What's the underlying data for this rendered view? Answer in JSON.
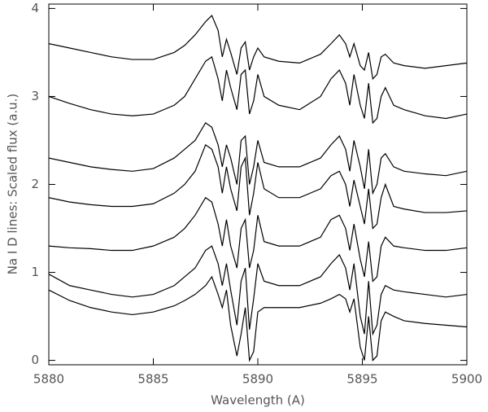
{
  "chart_data": {
    "type": "line",
    "xlabel": "Wavelength (A)",
    "ylabel": "Na I D lines: Scaled flux (a.u.)",
    "x": [
      5880,
      5881,
      5882,
      5883,
      5884,
      5885,
      5886,
      5886.5,
      5887,
      5887.5,
      5887.8,
      5888.1,
      5888.3,
      5888.5,
      5888.7,
      5889.0,
      5889.2,
      5889.4,
      5889.6,
      5889.8,
      5890.0,
      5890.3,
      5891,
      5892,
      5893,
      5893.5,
      5893.9,
      5894.2,
      5894.4,
      5894.6,
      5894.9,
      5895.1,
      5895.3,
      5895.5,
      5895.7,
      5895.9,
      5896.1,
      5896.5,
      5897,
      5898,
      5899,
      5900
    ],
    "series": [
      {
        "color": "#000000",
        "values": [
          3.6,
          3.55,
          3.5,
          3.45,
          3.42,
          3.42,
          3.5,
          3.58,
          3.7,
          3.85,
          3.92,
          3.75,
          3.45,
          3.65,
          3.5,
          3.25,
          3.55,
          3.62,
          3.3,
          3.45,
          3.55,
          3.45,
          3.4,
          3.38,
          3.48,
          3.6,
          3.7,
          3.6,
          3.45,
          3.6,
          3.35,
          3.3,
          3.5,
          3.2,
          3.25,
          3.45,
          3.48,
          3.38,
          3.35,
          3.32,
          3.35,
          3.38
        ]
      },
      {
        "color": "#000000",
        "values": [
          3.0,
          2.92,
          2.85,
          2.8,
          2.78,
          2.8,
          2.9,
          3.0,
          3.2,
          3.4,
          3.45,
          3.2,
          2.95,
          3.3,
          3.1,
          2.85,
          3.25,
          3.3,
          2.8,
          2.95,
          3.25,
          3.0,
          2.9,
          2.85,
          3.0,
          3.2,
          3.3,
          3.15,
          2.9,
          3.25,
          2.9,
          2.75,
          3.15,
          2.7,
          2.75,
          3.0,
          3.1,
          2.9,
          2.85,
          2.78,
          2.75,
          2.8
        ]
      },
      {
        "color": "#000000",
        "values": [
          2.3,
          2.25,
          2.2,
          2.17,
          2.15,
          2.18,
          2.3,
          2.4,
          2.5,
          2.7,
          2.65,
          2.45,
          2.2,
          2.45,
          2.3,
          2.0,
          2.5,
          2.55,
          2.0,
          2.2,
          2.5,
          2.25,
          2.2,
          2.2,
          2.3,
          2.45,
          2.55,
          2.4,
          2.15,
          2.5,
          2.2,
          1.95,
          2.4,
          1.9,
          2.0,
          2.3,
          2.35,
          2.2,
          2.15,
          2.12,
          2.1,
          2.15
        ]
      },
      {
        "color": "#000000",
        "values": [
          1.85,
          1.8,
          1.77,
          1.75,
          1.75,
          1.78,
          1.9,
          2.0,
          2.15,
          2.45,
          2.4,
          2.2,
          1.9,
          2.2,
          1.95,
          1.7,
          2.2,
          2.3,
          1.65,
          1.9,
          2.25,
          1.95,
          1.85,
          1.85,
          1.95,
          2.1,
          2.15,
          2.0,
          1.75,
          2.05,
          1.75,
          1.55,
          1.95,
          1.5,
          1.55,
          1.85,
          2.0,
          1.75,
          1.72,
          1.68,
          1.68,
          1.7
        ]
      },
      {
        "color": "#000000",
        "values": [
          1.3,
          1.28,
          1.27,
          1.25,
          1.25,
          1.3,
          1.4,
          1.5,
          1.65,
          1.85,
          1.8,
          1.55,
          1.3,
          1.6,
          1.3,
          1.05,
          1.5,
          1.6,
          1.05,
          1.25,
          1.65,
          1.35,
          1.3,
          1.3,
          1.4,
          1.6,
          1.65,
          1.5,
          1.25,
          1.55,
          1.15,
          0.95,
          1.35,
          0.9,
          0.95,
          1.3,
          1.4,
          1.3,
          1.28,
          1.25,
          1.25,
          1.28
        ]
      },
      {
        "color": "#000000",
        "values": [
          0.98,
          0.85,
          0.8,
          0.75,
          0.72,
          0.75,
          0.85,
          0.95,
          1.05,
          1.25,
          1.3,
          1.1,
          0.85,
          1.1,
          0.8,
          0.4,
          0.9,
          1.05,
          0.35,
          0.7,
          1.1,
          0.9,
          0.85,
          0.85,
          0.95,
          1.1,
          1.2,
          1.05,
          0.8,
          1.1,
          0.5,
          0.3,
          0.9,
          0.3,
          0.4,
          0.75,
          0.85,
          0.8,
          0.78,
          0.75,
          0.72,
          0.75
        ]
      },
      {
        "color": "#000000",
        "values": [
          0.8,
          0.68,
          0.6,
          0.55,
          0.52,
          0.55,
          0.62,
          0.68,
          0.75,
          0.85,
          0.95,
          0.75,
          0.6,
          0.8,
          0.4,
          0.05,
          0.3,
          0.6,
          0.0,
          0.1,
          0.55,
          0.6,
          0.6,
          0.6,
          0.65,
          0.7,
          0.75,
          0.7,
          0.55,
          0.7,
          0.15,
          0.0,
          0.5,
          0.0,
          0.05,
          0.45,
          0.55,
          0.5,
          0.45,
          0.42,
          0.4,
          0.38
        ]
      }
    ],
    "xlim": [
      5880,
      5900
    ],
    "xticks": [
      5880,
      5885,
      5890,
      5895,
      5900
    ],
    "ylim": [
      -0.05,
      4.05
    ],
    "yticks": [
      0,
      1,
      2,
      3,
      4
    ]
  }
}
